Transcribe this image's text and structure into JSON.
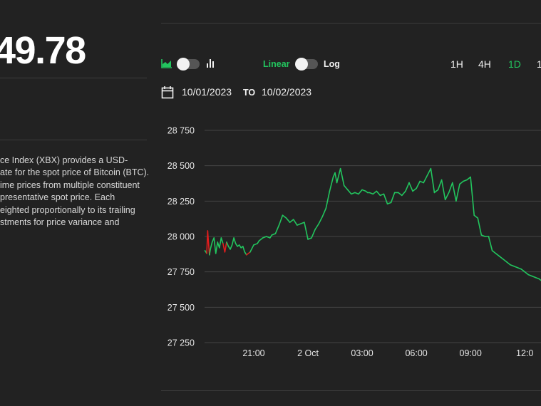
{
  "price_value": "49.78",
  "description_lines": [
    "ce Index (XBX) provides a USD-",
    "ate for the spot price of Bitcoin (BTC).",
    "ime prices from multiple constituent",
    "presentative spot price. Each",
    "eighted proportionally to its trailing",
    "stments for price variance and"
  ],
  "toolbar": {
    "chart_type_area_icon": "area-chart-icon",
    "chart_type_bar_icon": "bar-chart-icon",
    "scale_linear_label": "Linear",
    "scale_log_label": "Log",
    "timeframes": [
      "1H",
      "4H",
      "1D",
      "1"
    ],
    "active_timeframe": "1D"
  },
  "date_range": {
    "calendar_icon": "calendar-icon",
    "from": "10/01/2023",
    "to_label": "TO",
    "to": "10/02/2023"
  },
  "colors": {
    "background": "#222222",
    "accent": "#22c55e",
    "up_line": "#22c55e",
    "down_line": "#e11d1d",
    "grid": "#444444"
  },
  "chart_data": {
    "type": "line",
    "scale": "linear",
    "grid": true,
    "y_ticks": [
      27250,
      27500,
      27750,
      28000,
      28250,
      28500,
      28750
    ],
    "y_tick_labels": [
      "27 250",
      "27 500",
      "27 750",
      "28 000",
      "28 250",
      "28 500",
      "28 750"
    ],
    "ylim": [
      27250,
      28750
    ],
    "x_tick_labels": [
      "21:00",
      "2 Oct",
      "03:00",
      "06:00",
      "09:00",
      "12:0"
    ],
    "x_tick_hours": [
      21,
      24,
      27,
      30,
      33,
      36
    ],
    "xlim": [
      18.2,
      36.9
    ],
    "series": [
      {
        "x": [
          18.3,
          18.4,
          18.45,
          18.5,
          18.55,
          18.6,
          18.7,
          18.8,
          18.9,
          19.0,
          19.1,
          19.2,
          19.3,
          19.4,
          19.5,
          19.6,
          19.7,
          19.8,
          19.9,
          20.0,
          20.1,
          20.2,
          20.3,
          20.4,
          20.5,
          20.6,
          20.8,
          21.0,
          21.2,
          21.3,
          21.4,
          21.5,
          21.7,
          21.9,
          22.0,
          22.2,
          22.4,
          22.6,
          22.8,
          23.0,
          23.2,
          23.4,
          23.6,
          23.8,
          24.0,
          24.2,
          24.4,
          24.6,
          24.8,
          25.0,
          25.2,
          25.4,
          25.5,
          25.6,
          25.8,
          26.0,
          26.2,
          26.4,
          26.6,
          26.8,
          27.0,
          27.2,
          27.3,
          27.4,
          27.6,
          27.8,
          28.0,
          28.2,
          28.4,
          28.6,
          28.8,
          29.0,
          29.2,
          29.4,
          29.6,
          29.8,
          30.0,
          30.2,
          30.4,
          30.6,
          30.8,
          31.0,
          31.2,
          31.4,
          31.6,
          31.8,
          32.0,
          32.2,
          32.4,
          32.6,
          32.8,
          33.0,
          33.2,
          33.4,
          33.6,
          33.8,
          34.0,
          34.2,
          34.4,
          34.6,
          34.8,
          35.0,
          35.2,
          35.4,
          35.6,
          35.8,
          35.9,
          36.0,
          36.1,
          36.2,
          36.4,
          36.6,
          36.8,
          36.9
        ],
        "y": [
          27900,
          27880,
          28040,
          27950,
          27870,
          27910,
          27960,
          27990,
          27880,
          27960,
          27920,
          27990,
          27950,
          27890,
          27960,
          27930,
          27910,
          27940,
          27990,
          27950,
          27930,
          27940,
          27920,
          27930,
          27890,
          27870,
          27890,
          27940,
          27950,
          27970,
          27980,
          27990,
          28000,
          27990,
          28010,
          28020,
          28080,
          28150,
          28130,
          28100,
          28120,
          28080,
          28090,
          28100,
          27980,
          27990,
          28050,
          28090,
          28140,
          28200,
          28320,
          28420,
          28450,
          28380,
          28480,
          28360,
          28330,
          28300,
          28310,
          28300,
          28330,
          28320,
          28310,
          28310,
          28300,
          28320,
          28290,
          28300,
          28230,
          28240,
          28310,
          28310,
          28290,
          28320,
          28380,
          28320,
          28340,
          28390,
          28380,
          28430,
          28480,
          28310,
          28330,
          28400,
          28260,
          28310,
          28380,
          28250,
          28370,
          28390,
          28400,
          28420,
          28150,
          28130,
          28010,
          28000,
          28000,
          27900,
          27880,
          27860,
          27840,
          27820,
          27800,
          27790,
          27780,
          27770,
          27760,
          27750,
          27740,
          27730,
          27720,
          27710,
          27700,
          27690
        ],
        "down_segments": [
          [
            18.4,
            18.55
          ],
          [
            19.3,
            19.5
          ],
          [
            20.6,
            20.8
          ]
        ]
      }
    ]
  }
}
